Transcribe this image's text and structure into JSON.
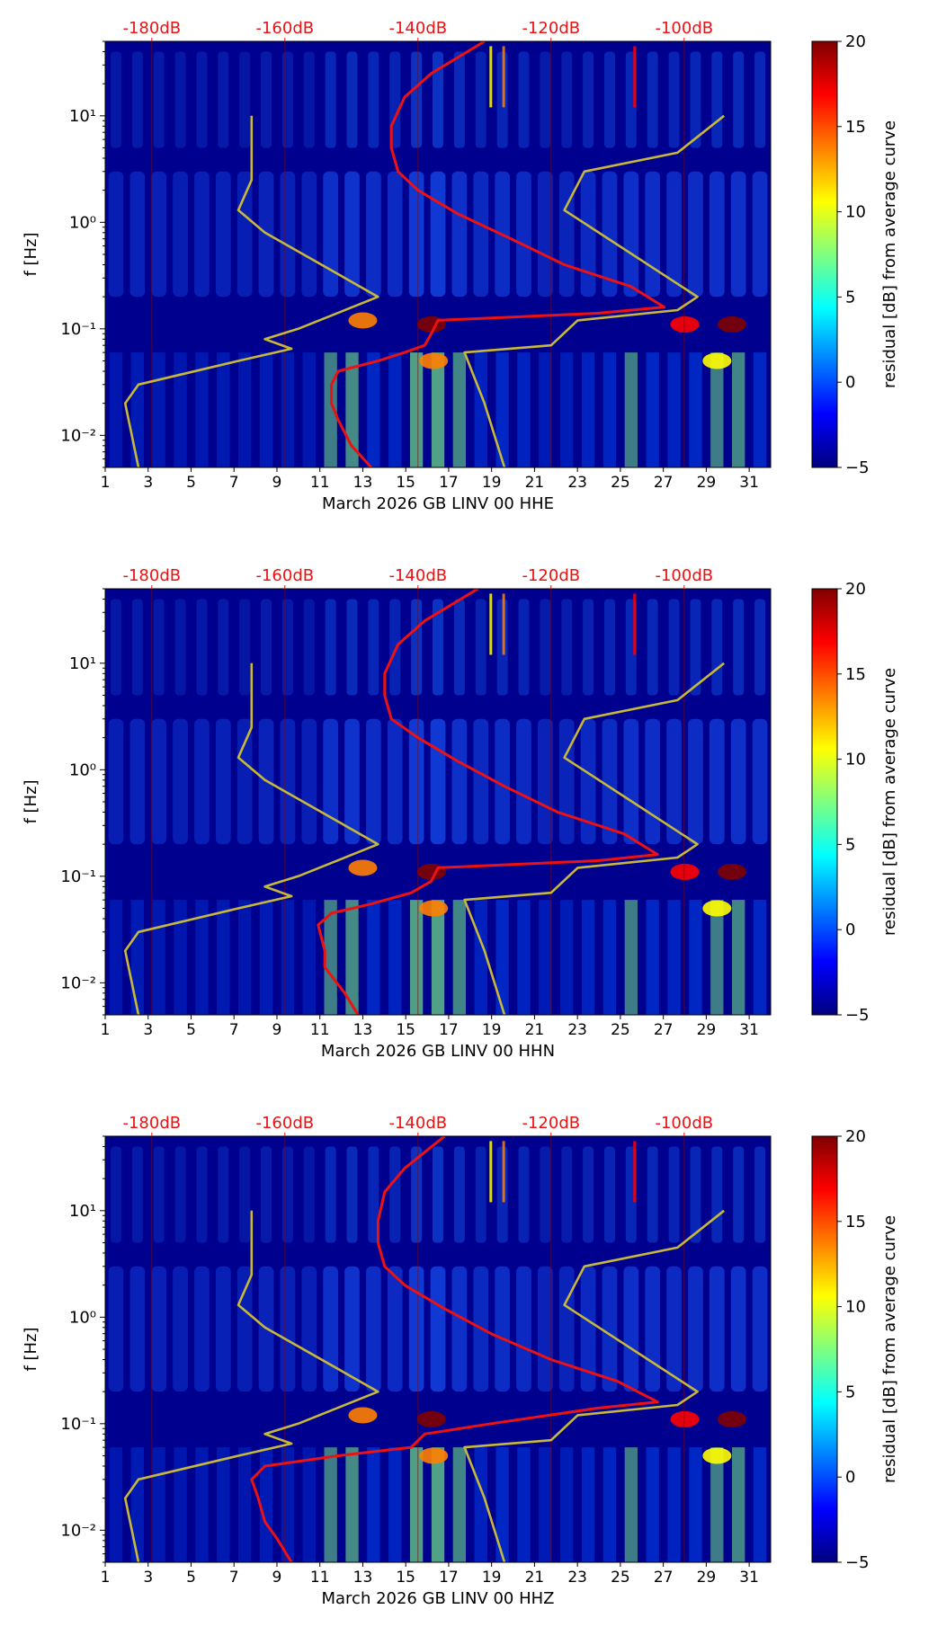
{
  "colorbar": {
    "label": "residual [dB] from average curve",
    "ticks": [
      "20",
      "15",
      "10",
      "5",
      "0",
      "−5"
    ],
    "stops": [
      "#00007f",
      "#0000ff",
      "#007fff",
      "#00ffff",
      "#7fff7f",
      "#ffff00",
      "#ff7f00",
      "#ff0000",
      "#7f0000"
    ]
  },
  "colors": {
    "psd_curve": "#ee1111",
    "noise_model": "#c8b83a",
    "top_axis": "#ee1111"
  },
  "chart_data": [
    {
      "type": "heatmap",
      "id": "hhe",
      "xlabel": "March 2026 GB LINV 00 HHE",
      "ylabel": "f [Hz]",
      "xlim": [
        1,
        32
      ],
      "x_ticks": [
        "1",
        "3",
        "5",
        "7",
        "9",
        "11",
        "13",
        "15",
        "17",
        "19",
        "21",
        "23",
        "25",
        "27",
        "29",
        "31"
      ],
      "y_scale": "log",
      "ylim": [
        0.005,
        50
      ],
      "y_ticks": [
        {
          "label": "10¹",
          "value": 10
        },
        {
          "label": "10⁰",
          "value": 1
        },
        {
          "label": "10⁻¹",
          "value": 0.1
        },
        {
          "label": "10⁻²",
          "value": 0.01
        }
      ],
      "top_ticks": [
        {
          "label": "-180dB",
          "value": -180
        },
        {
          "label": "-160dB",
          "value": -160
        },
        {
          "label": "-140dB",
          "value": -140
        },
        {
          "label": "-120dB",
          "value": -120
        },
        {
          "label": "-100dB",
          "value": -100
        }
      ],
      "db_axis": [
        -187,
        -87
      ],
      "series": [
        {
          "name": "station PSD",
          "points": [
            [
              -147,
              0.005
            ],
            [
              -150,
              0.008
            ],
            [
              -152,
              0.014
            ],
            [
              -153,
              0.02
            ],
            [
              -153,
              0.03
            ],
            [
              -152,
              0.04
            ],
            [
              -146,
              0.05
            ],
            [
              -142,
              0.06
            ],
            [
              -139,
              0.07
            ],
            [
              -138,
              0.09
            ],
            [
              -137,
              0.12
            ],
            [
              -113,
              0.14
            ],
            [
              -103,
              0.16
            ],
            [
              -108,
              0.25
            ],
            [
              -118,
              0.4
            ],
            [
              -126,
              0.7
            ],
            [
              -134,
              1.2
            ],
            [
              -140,
              2.0
            ],
            [
              -143,
              3.0
            ],
            [
              -144,
              5.0
            ],
            [
              -144,
              8.0
            ],
            [
              -142,
              15
            ],
            [
              -138,
              25
            ],
            [
              -130,
              50
            ]
          ]
        },
        {
          "name": "noise model",
          "points": [
            [
              -182,
              0.005
            ],
            [
              -183,
              0.01
            ],
            [
              -184,
              0.02
            ],
            [
              -182,
              0.03
            ],
            [
              -167,
              0.05
            ],
            [
              -159,
              0.065
            ],
            [
              -163,
              0.08
            ],
            [
              -158,
              0.1
            ],
            [
              -146,
              0.2
            ],
            [
              -163,
              0.8
            ],
            [
              -167,
              1.3
            ],
            [
              -165,
              2.5
            ],
            [
              -165,
              10
            ]
          ]
        },
        {
          "name": "noise model upper",
          "points": [
            [
              -127,
              0.005
            ],
            [
              -130,
              0.02
            ],
            [
              -133,
              0.06
            ],
            [
              -120,
              0.07
            ],
            [
              -116,
              0.12
            ],
            [
              -101,
              0.15
            ],
            [
              -98,
              0.2
            ],
            [
              -118,
              1.3
            ],
            [
              -115,
              3.0
            ],
            [
              -101,
              4.5
            ],
            [
              -94,
              10
            ]
          ]
        }
      ]
    },
    {
      "type": "heatmap",
      "id": "hhn",
      "xlabel": "March 2026 GB LINV 00 HHN",
      "ylabel": "f [Hz]",
      "xlim": [
        1,
        32
      ],
      "x_ticks": [
        "1",
        "3",
        "5",
        "7",
        "9",
        "11",
        "13",
        "15",
        "17",
        "19",
        "21",
        "23",
        "25",
        "27",
        "29",
        "31"
      ],
      "y_scale": "log",
      "ylim": [
        0.005,
        50
      ],
      "y_ticks": [
        {
          "label": "10¹",
          "value": 10
        },
        {
          "label": "10⁰",
          "value": 1
        },
        {
          "label": "10⁻¹",
          "value": 0.1
        },
        {
          "label": "10⁻²",
          "value": 0.01
        }
      ],
      "top_ticks": [
        {
          "label": "-180dB",
          "value": -180
        },
        {
          "label": "-160dB",
          "value": -160
        },
        {
          "label": "-140dB",
          "value": -140
        },
        {
          "label": "-120dB",
          "value": -120
        },
        {
          "label": "-100dB",
          "value": -100
        }
      ],
      "db_axis": [
        -187,
        -87
      ],
      "series": [
        {
          "name": "station PSD",
          "points": [
            [
              -149,
              0.005
            ],
            [
              -151,
              0.008
            ],
            [
              -154,
              0.014
            ],
            [
              -154,
              0.02
            ],
            [
              -155,
              0.035
            ],
            [
              -153,
              0.045
            ],
            [
              -147,
              0.055
            ],
            [
              -141,
              0.07
            ],
            [
              -138,
              0.09
            ],
            [
              -137,
              0.12
            ],
            [
              -113,
              0.14
            ],
            [
              -104,
              0.16
            ],
            [
              -109,
              0.25
            ],
            [
              -119,
              0.4
            ],
            [
              -127,
              0.7
            ],
            [
              -134,
              1.2
            ],
            [
              -140,
              2.0
            ],
            [
              -144,
              3.0
            ],
            [
              -145,
              5.0
            ],
            [
              -145,
              8.0
            ],
            [
              -143,
              15
            ],
            [
              -139,
              25
            ],
            [
              -131,
              50
            ]
          ]
        },
        {
          "name": "noise model",
          "points": [
            [
              -182,
              0.005
            ],
            [
              -183,
              0.01
            ],
            [
              -184,
              0.02
            ],
            [
              -182,
              0.03
            ],
            [
              -167,
              0.05
            ],
            [
              -159,
              0.065
            ],
            [
              -163,
              0.08
            ],
            [
              -158,
              0.1
            ],
            [
              -146,
              0.2
            ],
            [
              -163,
              0.8
            ],
            [
              -167,
              1.3
            ],
            [
              -165,
              2.5
            ],
            [
              -165,
              10
            ]
          ]
        },
        {
          "name": "noise model upper",
          "points": [
            [
              -127,
              0.005
            ],
            [
              -130,
              0.02
            ],
            [
              -133,
              0.06
            ],
            [
              -120,
              0.07
            ],
            [
              -116,
              0.12
            ],
            [
              -101,
              0.15
            ],
            [
              -98,
              0.2
            ],
            [
              -118,
              1.3
            ],
            [
              -115,
              3.0
            ],
            [
              -101,
              4.5
            ],
            [
              -94,
              10
            ]
          ]
        }
      ]
    },
    {
      "type": "heatmap",
      "id": "hhz",
      "xlabel": "March 2026 GB LINV 00 HHZ",
      "ylabel": "f [Hz]",
      "xlim": [
        1,
        32
      ],
      "x_ticks": [
        "1",
        "3",
        "5",
        "7",
        "9",
        "11",
        "13",
        "15",
        "17",
        "19",
        "21",
        "23",
        "25",
        "27",
        "29",
        "31"
      ],
      "y_scale": "log",
      "ylim": [
        0.005,
        50
      ],
      "y_ticks": [
        {
          "label": "10¹",
          "value": 10
        },
        {
          "label": "10⁰",
          "value": 1
        },
        {
          "label": "10⁻¹",
          "value": 0.1
        },
        {
          "label": "10⁻²",
          "value": 0.01
        }
      ],
      "top_ticks": [
        {
          "label": "-180dB",
          "value": -180
        },
        {
          "label": "-160dB",
          "value": -160
        },
        {
          "label": "-140dB",
          "value": -140
        },
        {
          "label": "-120dB",
          "value": -120
        },
        {
          "label": "-100dB",
          "value": -100
        }
      ],
      "db_axis": [
        -187,
        -87
      ],
      "series": [
        {
          "name": "station PSD",
          "points": [
            [
              -159,
              0.005
            ],
            [
              -161,
              0.008
            ],
            [
              -163,
              0.012
            ],
            [
              -164,
              0.02
            ],
            [
              -165,
              0.03
            ],
            [
              -163,
              0.04
            ],
            [
              -152,
              0.05
            ],
            [
              -141,
              0.06
            ],
            [
              -139,
              0.08
            ],
            [
              -129,
              0.1
            ],
            [
              -113,
              0.14
            ],
            [
              -104,
              0.16
            ],
            [
              -110,
              0.25
            ],
            [
              -120,
              0.4
            ],
            [
              -129,
              0.7
            ],
            [
              -136,
              1.2
            ],
            [
              -142,
              2.0
            ],
            [
              -145,
              3.0
            ],
            [
              -146,
              5.0
            ],
            [
              -146,
              8.0
            ],
            [
              -145,
              15
            ],
            [
              -142,
              25
            ],
            [
              -136,
              50
            ]
          ]
        },
        {
          "name": "noise model",
          "points": [
            [
              -182,
              0.005
            ],
            [
              -183,
              0.01
            ],
            [
              -184,
              0.02
            ],
            [
              -182,
              0.03
            ],
            [
              -167,
              0.05
            ],
            [
              -159,
              0.065
            ],
            [
              -163,
              0.08
            ],
            [
              -158,
              0.1
            ],
            [
              -146,
              0.2
            ],
            [
              -163,
              0.8
            ],
            [
              -167,
              1.3
            ],
            [
              -165,
              2.5
            ],
            [
              -165,
              10
            ]
          ]
        },
        {
          "name": "noise model upper",
          "points": [
            [
              -127,
              0.005
            ],
            [
              -130,
              0.02
            ],
            [
              -133,
              0.06
            ],
            [
              -120,
              0.07
            ],
            [
              -116,
              0.12
            ],
            [
              -101,
              0.15
            ],
            [
              -98,
              0.2
            ],
            [
              -118,
              1.3
            ],
            [
              -115,
              3.0
            ],
            [
              -101,
              4.5
            ],
            [
              -94,
              10
            ]
          ]
        }
      ]
    }
  ]
}
